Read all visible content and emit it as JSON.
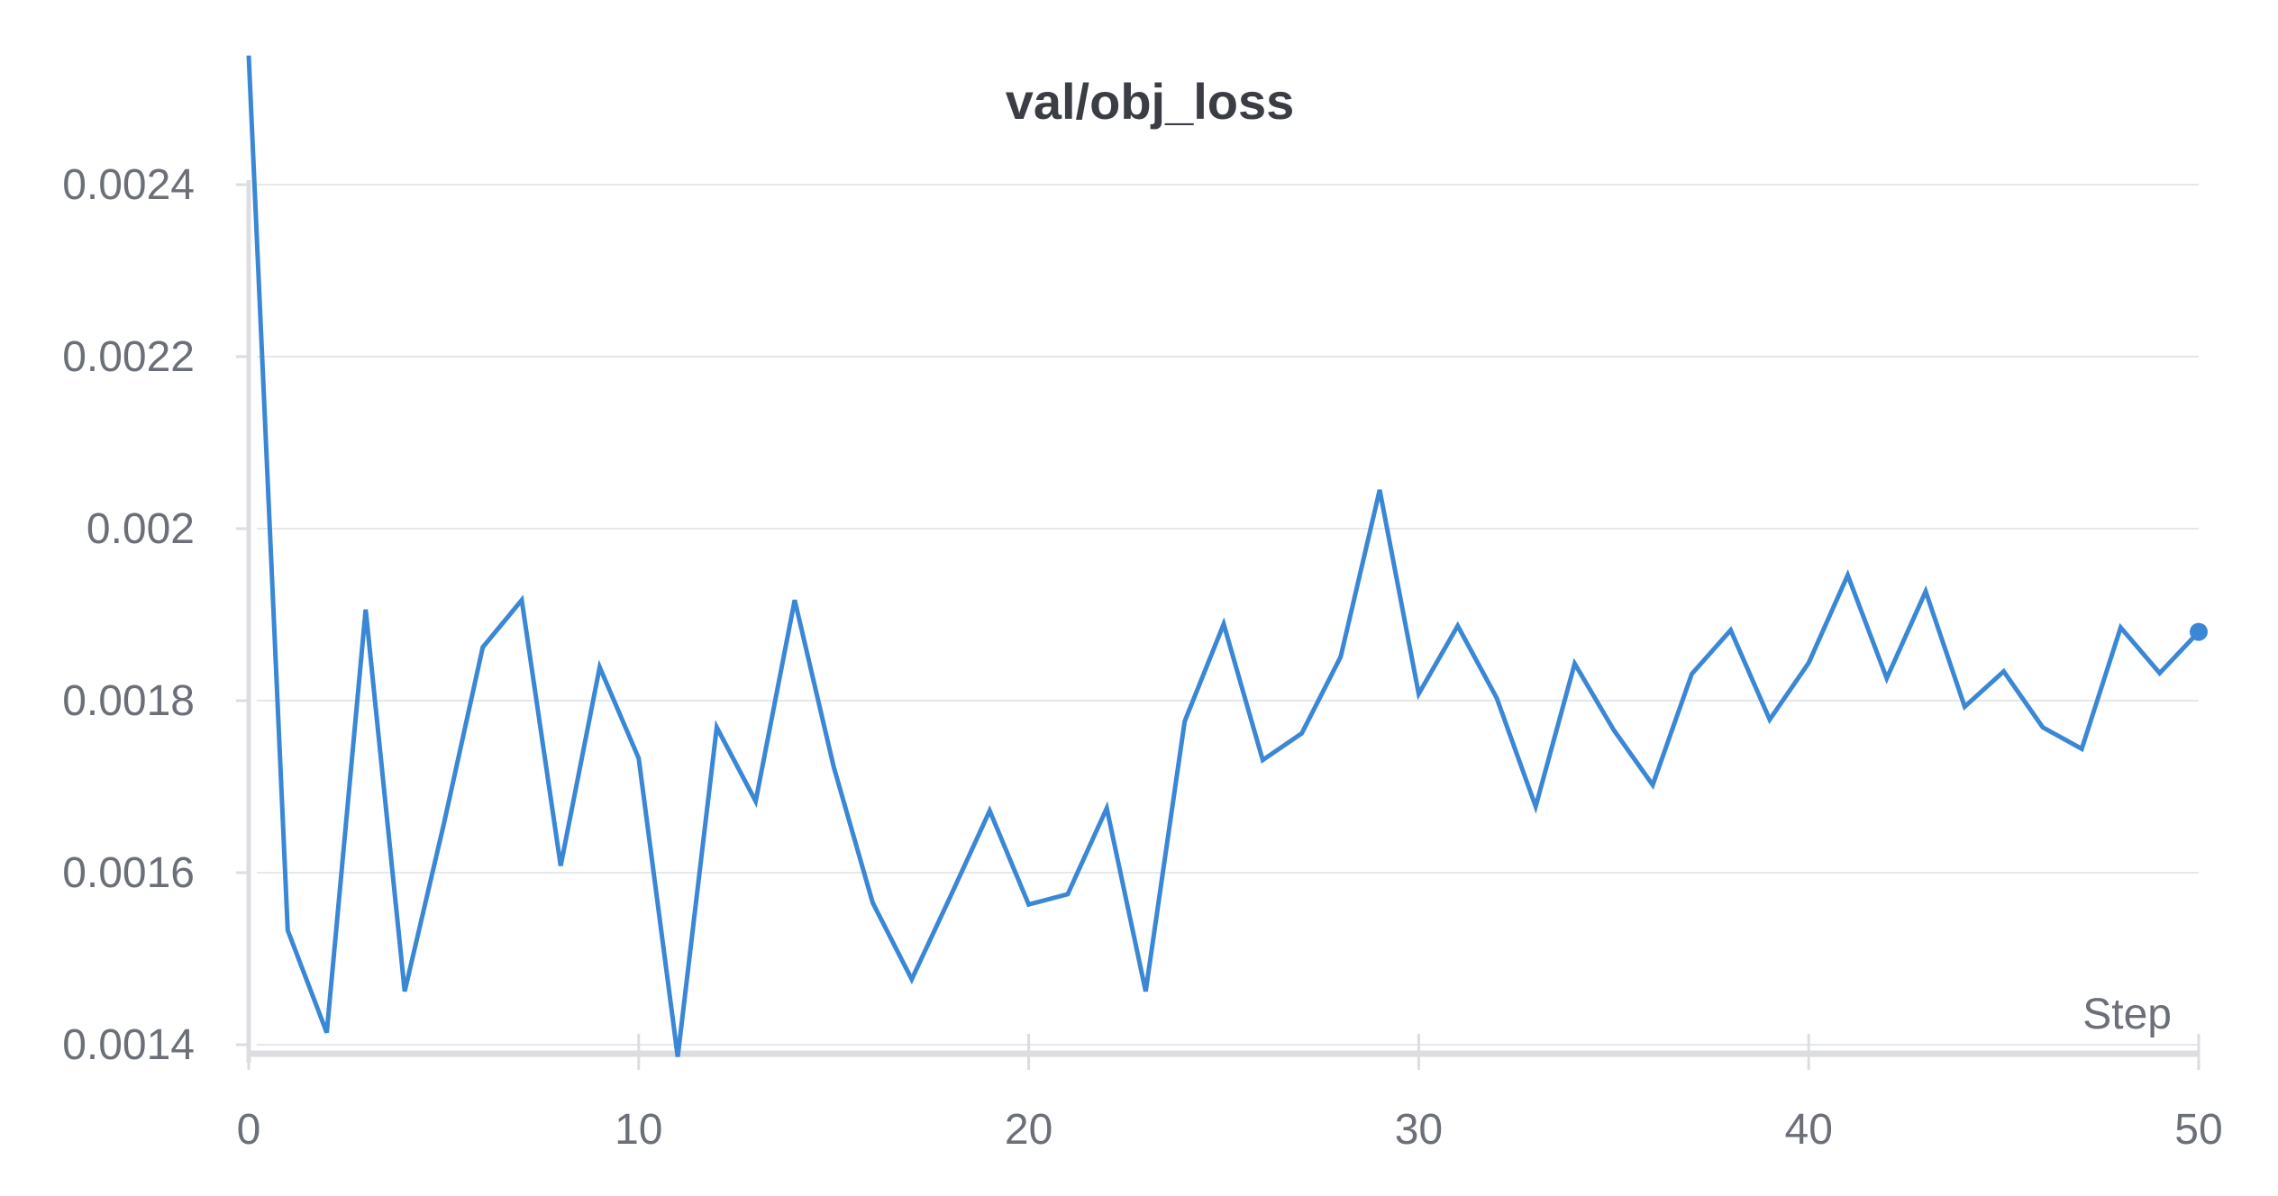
{
  "chart_data": {
    "type": "line",
    "title": "val/obj_loss",
    "xlabel": "Step",
    "ylabel": "",
    "xlim": [
      0,
      50
    ],
    "ylim": [
      0.0014,
      0.00256
    ],
    "x_ticks": [
      0,
      10,
      20,
      30,
      40,
      50
    ],
    "x_tick_labels": [
      "0",
      "10",
      "20",
      "30",
      "40",
      "50"
    ],
    "y_ticks": [
      0.0014,
      0.0016,
      0.0018,
      0.002,
      0.0022,
      0.0024
    ],
    "y_tick_labels": [
      "0.0014",
      "0.0016",
      "0.0018",
      "0.002",
      "0.0022",
      "0.0024"
    ],
    "grid": true,
    "color": "#3a87d6",
    "x": [
      0,
      1,
      2,
      3,
      4,
      5,
      6,
      7,
      8,
      9,
      10,
      11,
      12,
      13,
      14,
      15,
      16,
      17,
      18,
      19,
      20,
      21,
      22,
      23,
      24,
      25,
      26,
      27,
      28,
      29,
      30,
      31,
      32,
      33,
      34,
      35,
      36,
      37,
      38,
      39,
      40,
      41,
      42,
      43,
      44,
      45,
      46,
      47,
      48,
      49,
      50
    ],
    "values": [
      0.00255,
      0.001533,
      0.001414,
      0.001906,
      0.001462,
      0.001656,
      0.001862,
      0.001917,
      0.001608,
      0.001839,
      0.001733,
      0.001386,
      0.001769,
      0.001683,
      0.001917,
      0.001723,
      0.001565,
      0.001476,
      0.001573,
      0.001672,
      0.001563,
      0.001575,
      0.001675,
      0.001462,
      0.001776,
      0.001889,
      0.001731,
      0.001762,
      0.001851,
      0.002045,
      0.001808,
      0.001887,
      0.001803,
      0.001677,
      0.001843,
      0.001766,
      0.001702,
      0.001831,
      0.001882,
      0.001778,
      0.001844,
      0.001946,
      0.001826,
      0.001927,
      0.001793,
      0.001834,
      0.001769,
      0.001744,
      0.001885,
      0.001832,
      0.00188
    ]
  }
}
